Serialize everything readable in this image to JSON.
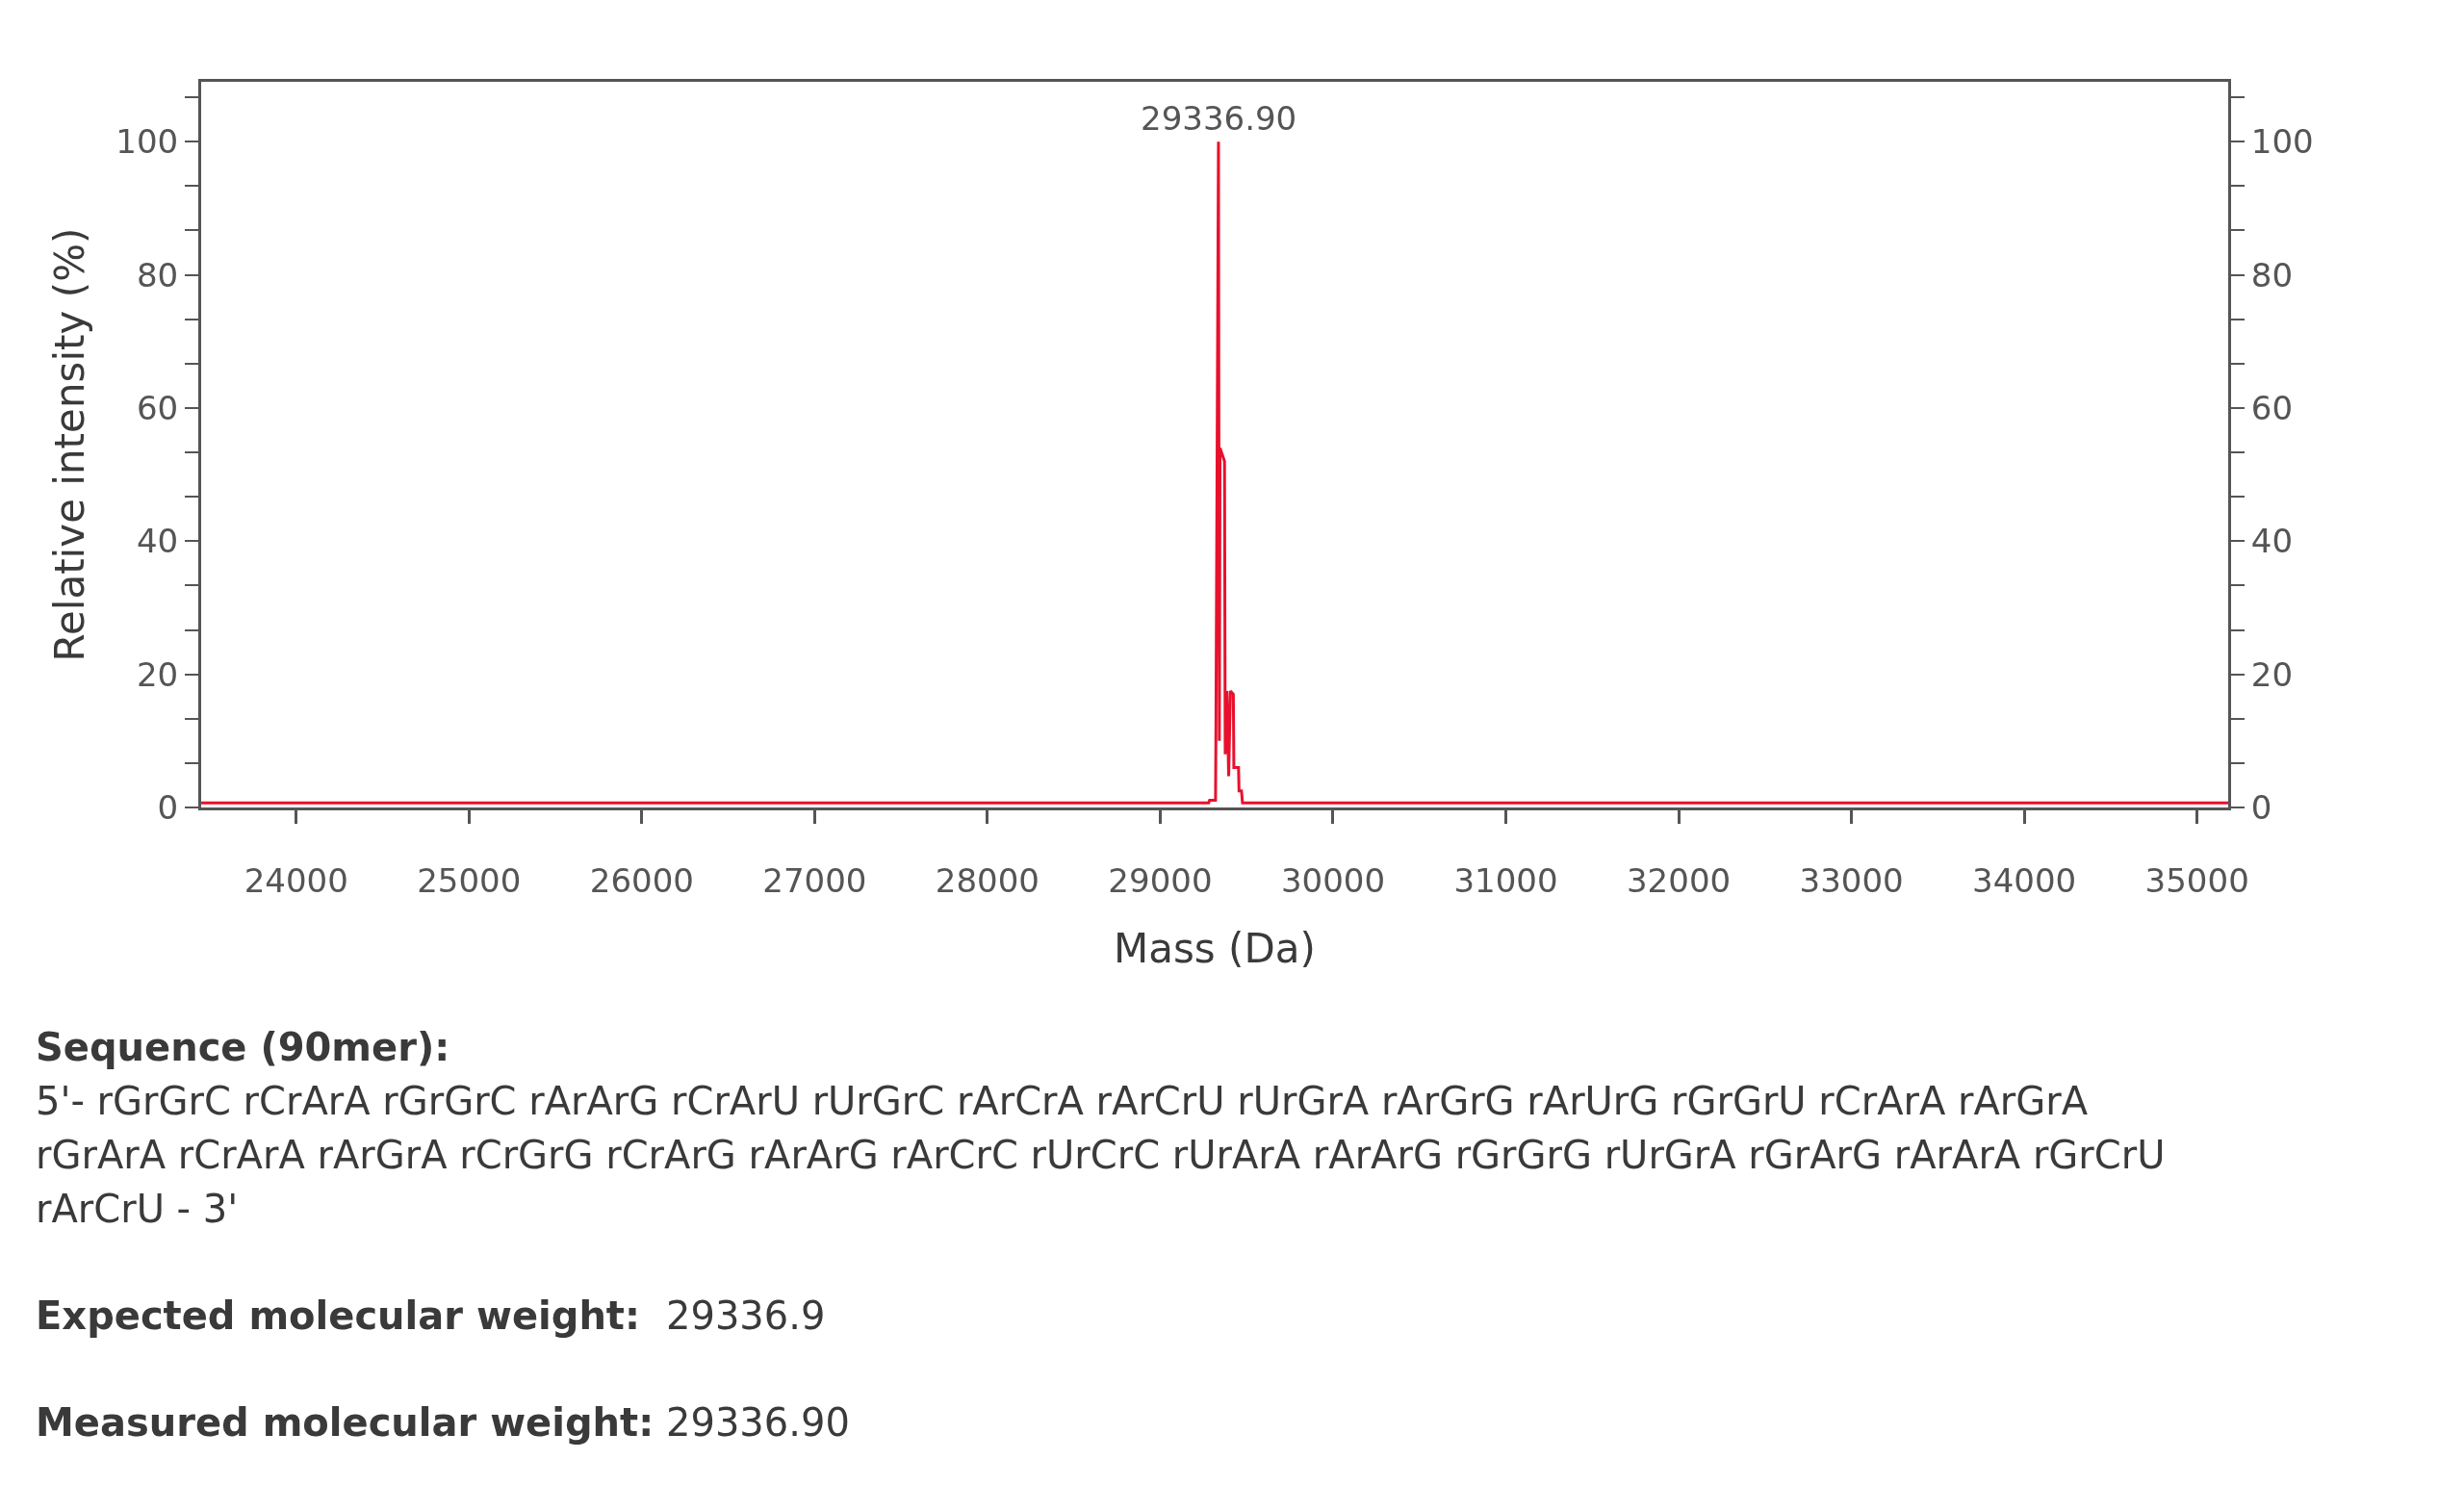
{
  "chart_data": {
    "type": "line",
    "xlabel": "Mass (Da)",
    "ylabel": "Relative intensity (%)",
    "x": [
      23450,
      29280,
      29286,
      29320,
      29322,
      29337,
      29342,
      29346,
      29372,
      29376,
      29386,
      29396,
      29406,
      29423,
      29426,
      29453,
      29456,
      29470,
      29476,
      35180
    ],
    "series": [
      {
        "color": "#e8112d",
        "values": [
          0.7,
          0.7,
          1.1,
          1.1,
          10,
          100,
          10,
          54,
          52,
          8,
          17.5,
          4.7,
          17.5,
          17,
          6,
          6,
          2.5,
          2.5,
          0.7,
          0.7
        ]
      }
    ],
    "xlim": [
      23450,
      35180
    ],
    "ylim": [
      0,
      109
    ],
    "y2lim": [
      0,
      109
    ],
    "xticks": [
      24000,
      25000,
      26000,
      27000,
      28000,
      29000,
      30000,
      31000,
      32000,
      33000,
      34000,
      35000
    ],
    "yticks": [
      0,
      {
        "value": 6.67,
        "label": null
      },
      {
        "value": 13.33,
        "label": null
      },
      20,
      {
        "value": 26.67,
        "label": null
      },
      {
        "value": 33.33,
        "label": null
      },
      40,
      {
        "value": 46.67,
        "label": null
      },
      {
        "value": 53.33,
        "label": null
      },
      60,
      {
        "value": 66.67,
        "label": null
      },
      {
        "value": 73.33,
        "label": null
      },
      80,
      {
        "value": 86.67,
        "label": null
      },
      {
        "value": 93.33,
        "label": null
      },
      100,
      {
        "value": 106.67,
        "label": null
      }
    ],
    "y2ticks": [
      0,
      {
        "value": 6.67,
        "label": null
      },
      {
        "value": 13.33,
        "label": null
      },
      20,
      {
        "value": 26.67,
        "label": null
      },
      {
        "value": 33.33,
        "label": null
      },
      40,
      {
        "value": 46.67,
        "label": null
      },
      {
        "value": 53.33,
        "label": null
      },
      60,
      {
        "value": 66.67,
        "label": null
      },
      {
        "value": 73.33,
        "label": null
      },
      80,
      {
        "value": 86.67,
        "label": null
      },
      {
        "value": 93.33,
        "label": null
      },
      100,
      {
        "value": 106.67,
        "label": null
      }
    ],
    "grid": false,
    "annotations": [
      {
        "text": "29336.90",
        "x": 29336.9,
        "y": 100
      },
      "Sequence (90mer):",
      "5'- rGrGrC rCrArA rGrGrC rArArG rCrArU rUrGrC rArCrA rArCrU rUrGrA rArGrG rArUrG rGrGrU rCrArA rArGrA rGrArA rCrArA rArGrA rCrGrG rCrArG rArArG rArCrC rUrCrC rUrArA rArArG rGrGrG rUrGrA rGrArG rArArA rGrCrU rArCrU - 3'",
      "Expected molecular weight: 29336.9",
      "Measured molecular weight: 29336.90"
    ]
  }
}
